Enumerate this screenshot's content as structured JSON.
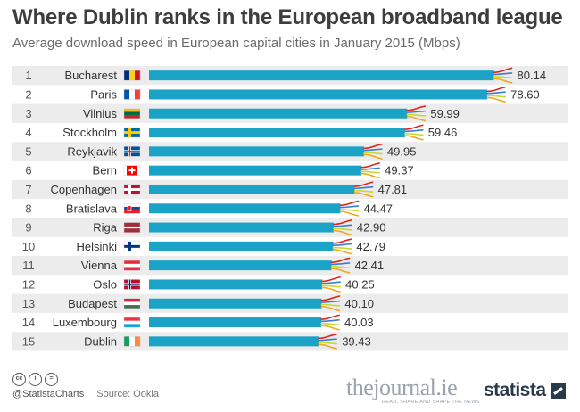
{
  "title": "Where Dublin ranks in the European broadband league",
  "subtitle": "Average download speed in European capital cities in January 2015 (Mbps)",
  "footer": {
    "handle": "@StatistaCharts",
    "source": "Source: Ookla",
    "cc_icons": [
      "cc",
      "i",
      "="
    ],
    "journal_name": "thejournal.ie",
    "journal_tagline": "READ, SHARE AND SHAPE THE NEWS",
    "brand": "statista"
  },
  "colors": {
    "bar": "#1aa3c6",
    "stripe": "#ececec",
    "wire_colors": [
      "#e2231a",
      "#3a7bd5",
      "#c6d92c",
      "#f2a81d"
    ]
  },
  "chart_data": {
    "type": "bar",
    "orientation": "horizontal",
    "title": "Where Dublin ranks in the European broadband league",
    "subtitle": "Average download speed in European capital cities in January 2015 (Mbps)",
    "ranks": [
      "1",
      "2",
      "3",
      "4",
      "5",
      "6",
      "7",
      "8",
      "9",
      "10",
      "11",
      "12",
      "13",
      "14",
      "15"
    ],
    "categories": [
      "Bucharest",
      "Paris",
      "Vilnius",
      "Stockholm",
      "Reykjavik",
      "Bern",
      "Copenhagen",
      "Bratislava",
      "Riga",
      "Helsinki",
      "Vienna",
      "Oslo",
      "Budapest",
      "Luxembourg",
      "Dublin"
    ],
    "values": [
      80.14,
      78.6,
      59.99,
      59.46,
      49.95,
      49.37,
      47.81,
      44.47,
      42.9,
      42.79,
      42.41,
      40.25,
      40.1,
      40.03,
      39.43
    ],
    "value_labels": [
      "80.14",
      "78.60",
      "59.99",
      "59.46",
      "49.95",
      "49.37",
      "47.81",
      "44.47",
      "42.90",
      "42.79",
      "42.41",
      "40.25",
      "40.10",
      "40.03",
      "39.43"
    ],
    "flags": [
      {
        "type": "v",
        "colors": [
          "#002b7f",
          "#fcd116",
          "#ce1126"
        ]
      },
      {
        "type": "v",
        "colors": [
          "#0055a4",
          "#ffffff",
          "#ef4135"
        ]
      },
      {
        "type": "h",
        "colors": [
          "#fdb913",
          "#006a44",
          "#c1272d"
        ]
      },
      {
        "type": "nordic",
        "bg": "#006aa7",
        "cross": "#fecc00"
      },
      {
        "type": "nordic",
        "bg": "#02529c",
        "cross": "#ffffff",
        "inner": "#dc1e35"
      },
      {
        "type": "swiss",
        "bg": "#ff0000",
        "cross": "#ffffff"
      },
      {
        "type": "nordic",
        "bg": "#c60c30",
        "cross": "#ffffff"
      },
      {
        "type": "h",
        "colors": [
          "#ffffff",
          "#0b4ea2",
          "#ee1c25"
        ],
        "emblem": "#ee1c25"
      },
      {
        "type": "h",
        "colors": [
          "#9e3039",
          "#ffffff",
          "#9e3039"
        ],
        "weights": [
          2,
          1,
          2
        ]
      },
      {
        "type": "nordic",
        "bg": "#ffffff",
        "cross": "#003580"
      },
      {
        "type": "h",
        "colors": [
          "#ed2939",
          "#ffffff",
          "#ed2939"
        ]
      },
      {
        "type": "nordic",
        "bg": "#ba0c2f",
        "cross": "#ffffff",
        "inner": "#00205b"
      },
      {
        "type": "h",
        "colors": [
          "#cd2a3e",
          "#ffffff",
          "#436f4d"
        ]
      },
      {
        "type": "h",
        "colors": [
          "#ef3340",
          "#ffffff",
          "#00a3e0"
        ]
      },
      {
        "type": "v",
        "colors": [
          "#169b62",
          "#ffffff",
          "#ff883e"
        ]
      }
    ],
    "xlim": [
      0,
      85
    ],
    "grid": false,
    "legend": "none"
  }
}
